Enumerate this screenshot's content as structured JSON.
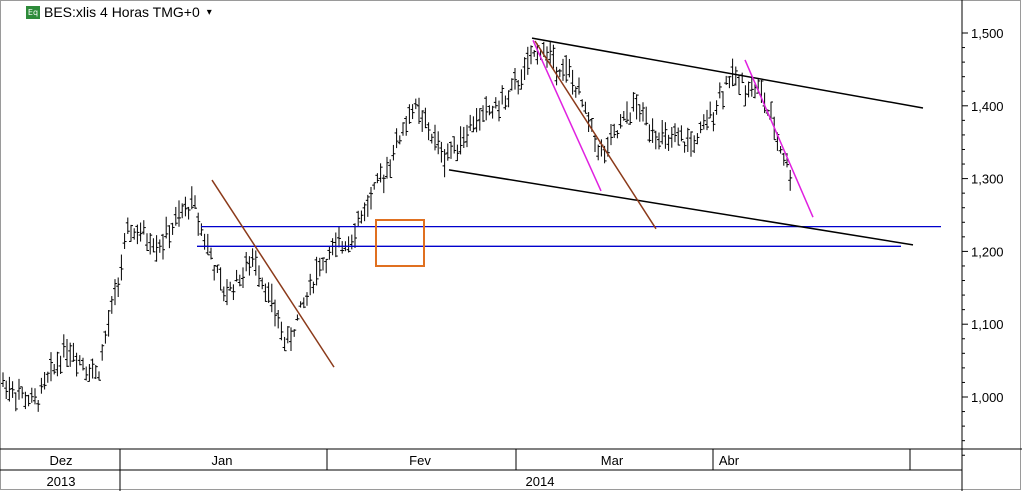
{
  "title_bar": {
    "icon_label": "Eq",
    "text": "BES:xlis 4 Horas TMG+0",
    "dropdown_glyph": "▾"
  },
  "chart_data": {
    "type": "ohlc",
    "title": "BES:xlis 4 Horas TMG+0",
    "y_axis": {
      "position": "right",
      "ticks": [
        1.0,
        1.1,
        1.2,
        1.3,
        1.4,
        1.5
      ],
      "tick_labels": [
        "1,000",
        "1,100",
        "1,200",
        "1,300",
        "1,400",
        "1,500"
      ],
      "range": [
        0.935,
        1.535
      ]
    },
    "x_axis": {
      "months": [
        "Dez",
        "Jan",
        "Fev",
        "Mar",
        "Abr"
      ],
      "years": [
        "2013",
        "2014"
      ]
    },
    "series": [
      {
        "segment": 1,
        "start": 1.02,
        "end": 0.99
      },
      {
        "segment": 2,
        "start": 0.99,
        "end": 1.07
      },
      {
        "segment": 3,
        "start": 1.07,
        "end": 1.03
      },
      {
        "segment": 4,
        "start": 1.03,
        "end": 1.23
      },
      {
        "segment": 5,
        "start": 1.23,
        "end": 1.21
      },
      {
        "segment": 6,
        "start": 1.21,
        "end": 1.27
      },
      {
        "segment": 7,
        "start": 1.27,
        "end": 1.14
      },
      {
        "segment": 8,
        "start": 1.14,
        "end": 1.19
      },
      {
        "segment": 9,
        "start": 1.19,
        "end": 1.07
      },
      {
        "segment": 10,
        "start": 1.07,
        "end": 1.18
      },
      {
        "segment": 11,
        "start": 1.18,
        "end": 1.22
      },
      {
        "segment": 12,
        "start": 1.22,
        "end": 1.3
      },
      {
        "segment": 13,
        "start": 1.3,
        "end": 1.4
      },
      {
        "segment": 14,
        "start": 1.4,
        "end": 1.33
      },
      {
        "segment": 15,
        "start": 1.33,
        "end": 1.38
      },
      {
        "segment": 16,
        "start": 1.38,
        "end": 1.41
      },
      {
        "segment": 17,
        "start": 1.41,
        "end": 1.48
      },
      {
        "segment": 18,
        "start": 1.48,
        "end": 1.44
      },
      {
        "segment": 19,
        "start": 1.44,
        "end": 1.33
      },
      {
        "segment": 20,
        "start": 1.33,
        "end": 1.4
      },
      {
        "segment": 21,
        "start": 1.4,
        "end": 1.35
      },
      {
        "segment": 22,
        "start": 1.35,
        "end": 1.35
      },
      {
        "segment": 23,
        "start": 1.35,
        "end": 1.44
      },
      {
        "segment": 24,
        "start": 1.44,
        "end": 1.42
      },
      {
        "segment": 25,
        "start": 1.42,
        "end": 1.3
      }
    ],
    "horizontal_lines": [
      1.234,
      1.207
    ],
    "highlight_box": {
      "color": "#e07020"
    },
    "trendline_colors": {
      "channel": "#000000",
      "brown": "#8b3a1a",
      "magenta": "#e020e0",
      "support": "#0000cc"
    }
  }
}
